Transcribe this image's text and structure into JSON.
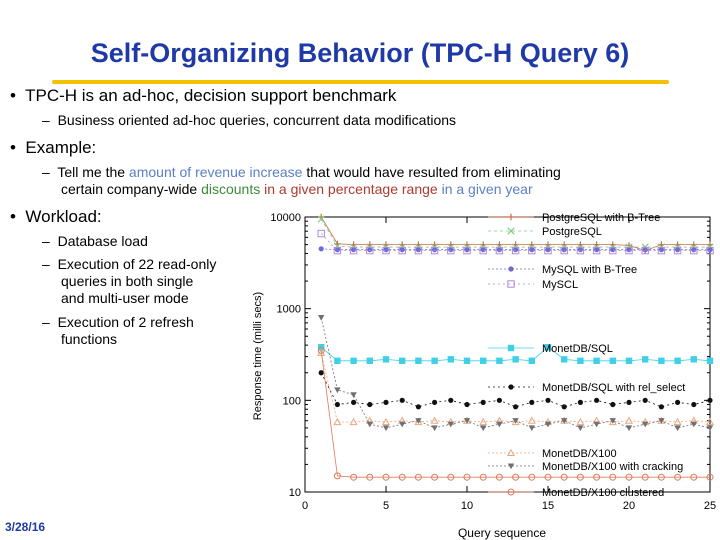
{
  "slide": {
    "title": "Self-Organizing Behavior (TPC-H Query 6)",
    "bullet1": "TPC-H is an ad-hoc, decision support benchmark",
    "bullet1_sub": "Business oriented ad-hoc queries, concurrent data modifications",
    "bullet2": "Example:",
    "bullet2_sub_parts": [
      "Tell me the ",
      "amount of revenue increase",
      " that would have resulted from eliminating"
    ],
    "bullet2_sub_line2_parts": [
      "certain company-wide ",
      "discounts",
      " in a given percentage range",
      " in a given year"
    ],
    "bullet3": "Workload:",
    "workload_items": [
      "Database load",
      "Execution of 22 read-only",
      "queries in both single",
      "and multi-user mode",
      "Execution of 2  refresh",
      "functions"
    ],
    "bullet_glyph": "•",
    "dash_glyph": "–",
    "footer_date": "3/28/16"
  },
  "chart_data": {
    "type": "scatter",
    "xlabel": "Query sequence",
    "ylabel": "Response time (milli secs)",
    "x_scale": "linear",
    "y_scale": "log",
    "xlim": [
      0,
      25
    ],
    "ylim": [
      10,
      10000
    ],
    "x_ticks": [
      "0",
      "5",
      "10",
      "15",
      "20",
      "25"
    ],
    "y_ticks": [
      "10",
      "100",
      "1000",
      "10000"
    ],
    "legend_position": "right",
    "series": [
      {
        "name": "PostgreSQL with B-Tree",
        "color": "#d06a4a",
        "dash": "",
        "marker": "plus",
        "x": [
          1,
          2,
          3,
          4,
          5,
          6,
          7,
          8,
          9,
          10,
          11,
          12,
          13,
          14,
          15,
          16,
          17,
          18,
          19,
          20,
          21,
          22,
          23,
          24,
          25
        ],
        "y": [
          10500,
          5100,
          5000,
          5000,
          5000,
          5000,
          5000,
          5000,
          5000,
          5000,
          5000,
          5000,
          5000,
          5000,
          5000,
          5000,
          5000,
          5000,
          5000,
          4900,
          4300,
          5000,
          5000,
          5000,
          5000
        ]
      },
      {
        "name": "PostgreSQL",
        "color": "#7fcf7f",
        "dash": "3,3",
        "marker": "x",
        "x": [
          1,
          2,
          3,
          4,
          5,
          6,
          7,
          8,
          9,
          10,
          11,
          12,
          13,
          14,
          15,
          16,
          17,
          18,
          19,
          20,
          21,
          22,
          23,
          24,
          25
        ],
        "y": [
          9500,
          4800,
          4700,
          4700,
          4700,
          4700,
          4700,
          4700,
          4700,
          4700,
          4700,
          4700,
          4700,
          4700,
          4700,
          4700,
          4700,
          4700,
          4700,
          4700,
          4700,
          4700,
          4700,
          4700,
          4700
        ]
      },
      {
        "name": "MySQL with B-Tree",
        "color": "#6b6bd8",
        "dash": "2,2",
        "marker": "circle",
        "x": [
          1,
          2,
          3,
          4,
          5,
          6,
          7,
          8,
          9,
          10,
          11,
          12,
          13,
          14,
          15,
          16,
          17,
          18,
          19,
          20,
          21,
          22,
          23,
          24,
          25
        ],
        "y": [
          4500,
          4400,
          4400,
          4400,
          4400,
          4400,
          4400,
          4400,
          4400,
          4400,
          4400,
          4400,
          4400,
          4400,
          4400,
          4400,
          4400,
          4400,
          4400,
          4400,
          4400,
          4400,
          4400,
          4400,
          4400
        ]
      },
      {
        "name": "MySCL",
        "color": "#b08ad8",
        "dash": "2,3",
        "marker": "square-open",
        "x": [
          1,
          2,
          3,
          4,
          5,
          6,
          7,
          8,
          9,
          10,
          11,
          12,
          13,
          14,
          15,
          16,
          17,
          18,
          19,
          20,
          21,
          22,
          23,
          24,
          25
        ],
        "y": [
          6600,
          4300,
          4300,
          4300,
          4300,
          4300,
          4300,
          4300,
          4300,
          4300,
          4300,
          4300,
          4300,
          4300,
          4300,
          4300,
          4300,
          4300,
          4300,
          4300,
          4300,
          4300,
          4300,
          4300,
          4300
        ]
      },
      {
        "name": "MonetDB/SQL",
        "color": "#3fd0e8",
        "dash": "",
        "marker": "square",
        "x": [
          1,
          2,
          3,
          4,
          5,
          6,
          7,
          8,
          9,
          10,
          11,
          12,
          13,
          14,
          15,
          16,
          17,
          18,
          19,
          20,
          21,
          22,
          23,
          24,
          25
        ],
        "y": [
          380,
          270,
          270,
          270,
          280,
          270,
          270,
          270,
          280,
          270,
          270,
          270,
          280,
          270,
          380,
          280,
          270,
          270,
          270,
          270,
          280,
          270,
          270,
          280,
          270
        ]
      },
      {
        "name": "MonetDB/SQL with rel_select",
        "color": "#111111",
        "dash": "2,3",
        "marker": "circle",
        "x": [
          1,
          2,
          3,
          4,
          5,
          6,
          7,
          8,
          9,
          10,
          11,
          12,
          13,
          14,
          15,
          16,
          17,
          18,
          19,
          20,
          21,
          22,
          23,
          24,
          25
        ],
        "y": [
          200,
          90,
          95,
          90,
          95,
          100,
          85,
          95,
          100,
          90,
          95,
          100,
          85,
          95,
          100,
          85,
          95,
          100,
          90,
          95,
          100,
          85,
          95,
          90,
          100
        ]
      },
      {
        "name": "MonetDB/X100",
        "color": "#e8a880",
        "dash": "2,2",
        "marker": "triangle",
        "x": [
          1,
          2,
          3,
          4,
          5,
          6,
          7,
          8,
          9,
          10,
          11,
          12,
          13,
          14,
          15,
          16,
          17,
          18,
          19,
          20,
          21,
          22,
          23,
          24,
          25
        ],
        "y": [
          330,
          58,
          58,
          60,
          58,
          60,
          58,
          60,
          58,
          60,
          58,
          60,
          58,
          60,
          58,
          60,
          58,
          60,
          58,
          60,
          58,
          60,
          58,
          60,
          58
        ]
      },
      {
        "name": "MonetDB/X100 with cracking",
        "color": "#707070",
        "dash": "2,2",
        "marker": "triangle-down",
        "x": [
          1,
          2,
          3,
          4,
          5,
          6,
          7,
          8,
          9,
          10,
          11,
          12,
          13,
          14,
          15,
          16,
          17,
          18,
          19,
          20,
          21,
          22,
          23,
          24,
          25
        ],
        "y": [
          800,
          130,
          115,
          55,
          50,
          55,
          60,
          50,
          55,
          60,
          50,
          55,
          60,
          50,
          55,
          60,
          50,
          55,
          60,
          50,
          55,
          60,
          50,
          55,
          50
        ]
      },
      {
        "name": "MonetDB/X100 clustered",
        "color": "#e07a5a",
        "dash": "",
        "marker": "circle-open",
        "x": [
          1,
          2,
          3,
          4,
          5,
          6,
          7,
          8,
          9,
          10,
          11,
          12,
          13,
          14,
          15,
          16,
          17,
          18,
          19,
          20,
          21,
          22,
          23,
          24,
          25
        ],
        "y": [
          350,
          15,
          14.5,
          14.5,
          14.5,
          14.5,
          14.5,
          14.5,
          14.5,
          14.5,
          14.5,
          14.5,
          14.5,
          14.5,
          14.5,
          14.5,
          14.5,
          14.5,
          14.5,
          14.5,
          14.5,
          14.5,
          14.5,
          14.5,
          14.5
        ]
      }
    ]
  }
}
